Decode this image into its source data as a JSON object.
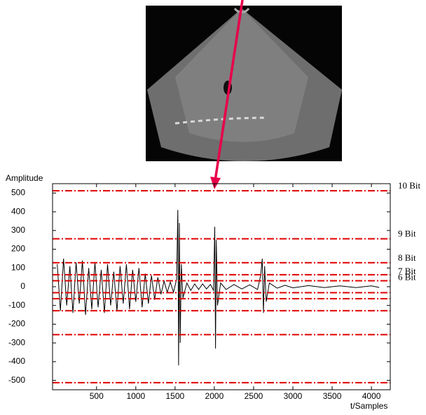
{
  "chart_data": {
    "type": "line",
    "y_label": "Amplitude",
    "x_label": "t/Samples",
    "xlim": [
      -60,
      4240
    ],
    "ylim": [
      -550,
      550
    ],
    "xticks": [
      500,
      1000,
      1500,
      2000,
      2500,
      3000,
      3500,
      4000
    ],
    "yticks": [
      -500,
      -400,
      -300,
      -200,
      -100,
      0,
      100,
      200,
      300,
      400,
      500
    ],
    "levels_color": "#e00000",
    "levels": [
      {
        "label": "10 Bit",
        "value": 512
      },
      {
        "label": "9 Bit",
        "value": 256
      },
      {
        "label": "8 Bit",
        "value": 128
      },
      {
        "label": "7 Bit",
        "value": 64
      },
      {
        "label": "6 Bit",
        "value": 32
      }
    ],
    "series": [
      {
        "color": "#000000",
        "x": [
          0,
          40,
          80,
          120,
          160,
          200,
          240,
          280,
          320,
          360,
          400,
          440,
          480,
          520,
          560,
          600,
          640,
          680,
          720,
          760,
          800,
          840,
          880,
          920,
          960,
          1000,
          1040,
          1080,
          1120,
          1160,
          1200,
          1240,
          1280,
          1320,
          1360,
          1400,
          1440,
          1480,
          1520,
          1535,
          1545,
          1555,
          1565,
          1580,
          1600,
          1650,
          1700,
          1750,
          1800,
          1850,
          1900,
          1950,
          1990,
          2005,
          2015,
          2025,
          2040,
          2080,
          2150,
          2250,
          2350,
          2450,
          2550,
          2590,
          2610,
          2625,
          2640,
          2660,
          2700,
          2800,
          2900,
          3000,
          3200,
          3400,
          3600,
          3800,
          4000,
          4100
        ],
        "values": [
          120,
          -130,
          150,
          -100,
          110,
          -140,
          130,
          -90,
          140,
          -150,
          100,
          -120,
          130,
          -110,
          90,
          -140,
          120,
          -100,
          80,
          -130,
          110,
          -90,
          120,
          -120,
          90,
          -80,
          100,
          -110,
          70,
          -90,
          60,
          -70,
          50,
          -40,
          30,
          -30,
          25,
          -30,
          40,
          410,
          -420,
          340,
          -300,
          120,
          -60,
          20,
          -20,
          15,
          -15,
          15,
          -12,
          12,
          -20,
          320,
          -330,
          250,
          -100,
          20,
          -15,
          12,
          -12,
          10,
          -15,
          60,
          150,
          -140,
          110,
          -80,
          20,
          -8,
          8,
          -6,
          6,
          -5,
          5,
          -5,
          5,
          -4
        ]
      }
    ]
  }
}
